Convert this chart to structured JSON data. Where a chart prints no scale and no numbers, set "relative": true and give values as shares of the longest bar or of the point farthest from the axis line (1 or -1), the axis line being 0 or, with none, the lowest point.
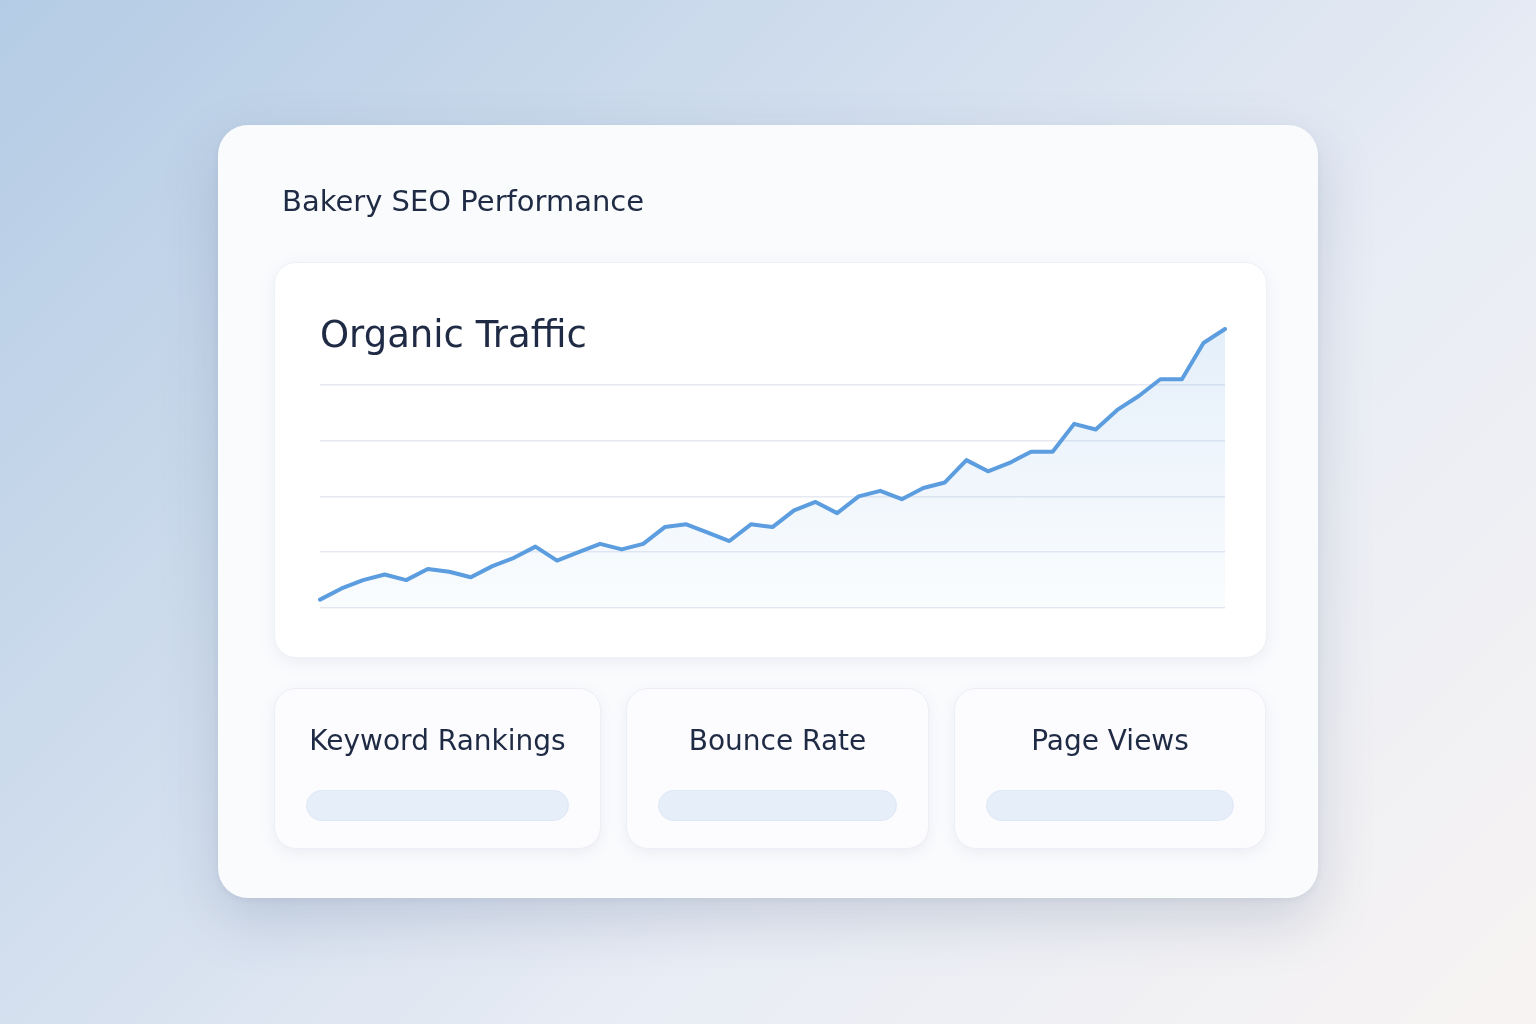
{
  "chart_data": [
    {
      "type": "other",
      "title": "Bakery SEO Performance"
    },
    {
      "type": "area",
      "title": "Organic Traffic",
      "categories": [
        null,
        null,
        null,
        null,
        null,
        null,
        null,
        null,
        null,
        null,
        null,
        null,
        null,
        null,
        null,
        null,
        null,
        null,
        null,
        null,
        null,
        null,
        null,
        null,
        null,
        null,
        null,
        null,
        null,
        null,
        null,
        null,
        null,
        null,
        null,
        null,
        null,
        null,
        null,
        null,
        null,
        null,
        null
      ],
      "values": [
        0.03,
        0.07,
        0.1,
        0.12,
        0.1,
        0.14,
        0.13,
        0.11,
        0.15,
        0.18,
        0.22,
        0.17,
        0.2,
        0.23,
        0.21,
        0.23,
        0.29,
        0.3,
        0.27,
        0.24,
        0.3,
        0.29,
        0.35,
        0.38,
        0.34,
        0.4,
        0.42,
        0.39,
        0.43,
        0.45,
        0.53,
        0.49,
        0.52,
        0.56,
        0.56,
        0.66,
        0.64,
        0.71,
        0.76,
        0.82,
        0.82,
        0.95,
        1
      ],
      "color": "#5b9ddf",
      "relative": true,
      "grid": "y",
      "marker": "none"
    },
    {
      "type": "other",
      "title": "Keyword Rankings"
    },
    {
      "type": "other",
      "title": "Bounce Rate"
    },
    {
      "type": "other",
      "title": "Page Views"
    }
  ]
}
